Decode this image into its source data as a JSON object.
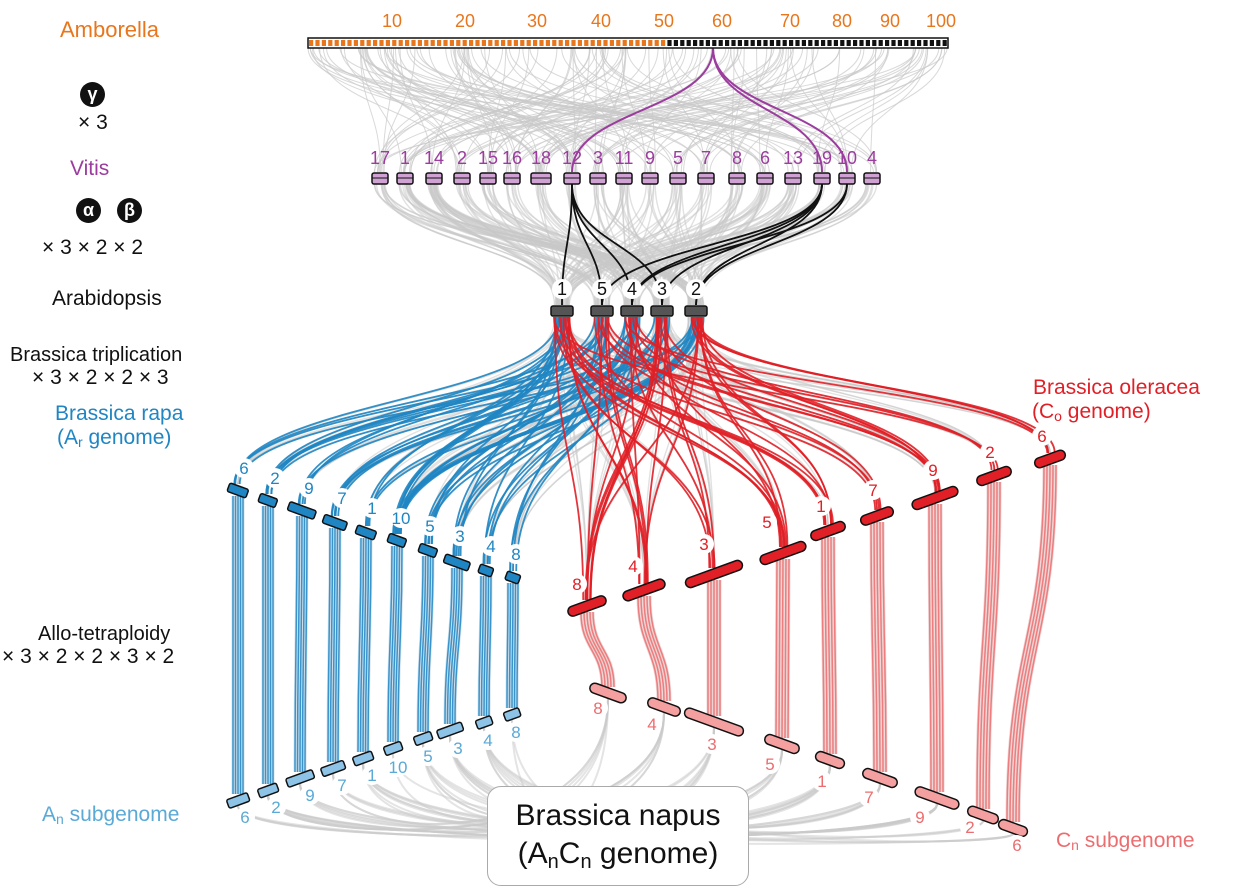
{
  "labels": {
    "amborella": "Amborella",
    "vitis": "Vitis",
    "arabidopsis": "Arabidopsis",
    "triplication": "Brassica triplication",
    "rapa_line1": "Brassica rapa",
    "rapa_line2_open": "(A",
    "rapa_line2_sub": "r",
    "rapa_line2_close": " genome)",
    "oleracea_line1": "Brassica oleracea",
    "oleracea_line2_open": "(C",
    "oleracea_line2_sub": "o",
    "oleracea_line2_close": " genome)",
    "allo": "Allo-tetraploidy",
    "an_sub_main": "A",
    "an_sub_sub": "n",
    "an_sub_rest": " subgenome",
    "cn_sub_main": "C",
    "cn_sub_sub": "n",
    "cn_sub_rest": " subgenome",
    "napus_line1": "Brassica napus",
    "napus_line2_open": "(A",
    "napus_line2_sub1": "n",
    "napus_line2_mid": "C",
    "napus_line2_sub2": "n",
    "napus_line2_close": " genome)"
  },
  "events": {
    "gamma_symbol": "γ",
    "gamma_mult": "× 3",
    "alpha_symbol": "α",
    "beta_symbol": "β",
    "ab_mult": "× 3 × 2 × 2",
    "trip_mult": "× 3 × 2 × 2 × 3",
    "allo_mult": "× 3 × 2 × 2 × 3 × 2"
  },
  "amborella_ticks": [
    "10",
    "20",
    "30",
    "40",
    "50",
    "60",
    "70",
    "80",
    "90",
    "100"
  ],
  "vitis_chromosomes": [
    "17",
    "1",
    "14",
    "2",
    "15",
    "16",
    "18",
    "12",
    "3",
    "11",
    "9",
    "5",
    "7",
    "8",
    "6",
    "13",
    "19",
    "10",
    "4"
  ],
  "arabidopsis_chromosomes": [
    "1",
    "5",
    "4",
    "3",
    "2"
  ],
  "rapa_chromosomes": [
    "6",
    "2",
    "9",
    "7",
    "1",
    "10",
    "5",
    "3",
    "4",
    "8"
  ],
  "oleracea_chromosomes": [
    "8",
    "4",
    "3",
    "5",
    "1",
    "7",
    "9",
    "2",
    "6"
  ],
  "an_chromosomes": [
    "6",
    "2",
    "9",
    "7",
    "1",
    "10",
    "5",
    "3",
    "4",
    "8"
  ],
  "cn_chromosomes": [
    "8",
    "4",
    "3",
    "5",
    "1",
    "7",
    "9",
    "2",
    "6"
  ],
  "colors": {
    "amborella": "#e8761d",
    "vitis": "#9b3c9e",
    "black": "#111111",
    "rapa": "#1f86c3",
    "oleracea": "#e01f26",
    "an": "#5aa9d6",
    "cn": "#ec6d6f",
    "grey": "#c9c9c9"
  }
}
